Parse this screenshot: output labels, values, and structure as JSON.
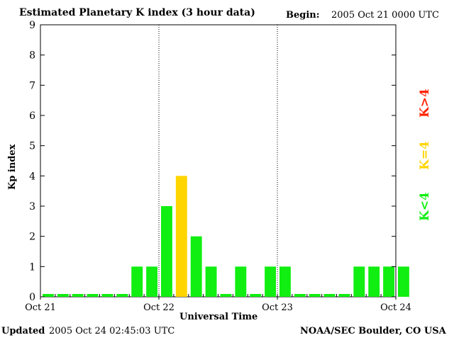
{
  "header": {
    "title": "Estimated Planetary K index (3 hour data)",
    "begin_label": "Begin:",
    "begin_value": "2005 Oct 21 0000 UTC"
  },
  "footer": {
    "updated_label": "Updated",
    "updated_value": "2005 Oct 24 02:45:03 UTC",
    "credit": "NOAA/SEC Boulder, CO USA"
  },
  "legend": [
    {
      "label": "K<4",
      "color": "#11ee11"
    },
    {
      "label": "K=4",
      "color": "#ffd500"
    },
    {
      "label": "K>4",
      "color": "#ff2200"
    }
  ],
  "chart_data": {
    "type": "bar",
    "title": "Estimated Planetary K index (3 hour data)",
    "xlabel": "Universal Time",
    "ylabel": "Kp index",
    "ylim": [
      0,
      9
    ],
    "yticks": [
      0,
      1,
      2,
      3,
      4,
      5,
      6,
      7,
      8,
      9
    ],
    "x_tick_labels": [
      "Oct 21",
      "Oct 22",
      "Oct 23",
      "Oct 24"
    ],
    "day_dividers": [
      "Oct 22",
      "Oct 23"
    ],
    "grid": false,
    "values": [
      0,
      0,
      0,
      0,
      0,
      0,
      1,
      1,
      3,
      4,
      2,
      1,
      0,
      1,
      0,
      1,
      1,
      0,
      0,
      0,
      0,
      1,
      1,
      1,
      1
    ],
    "colors": {
      "below4": "#11ee11",
      "equal4": "#ffd500",
      "above4": "#ff2200"
    }
  }
}
